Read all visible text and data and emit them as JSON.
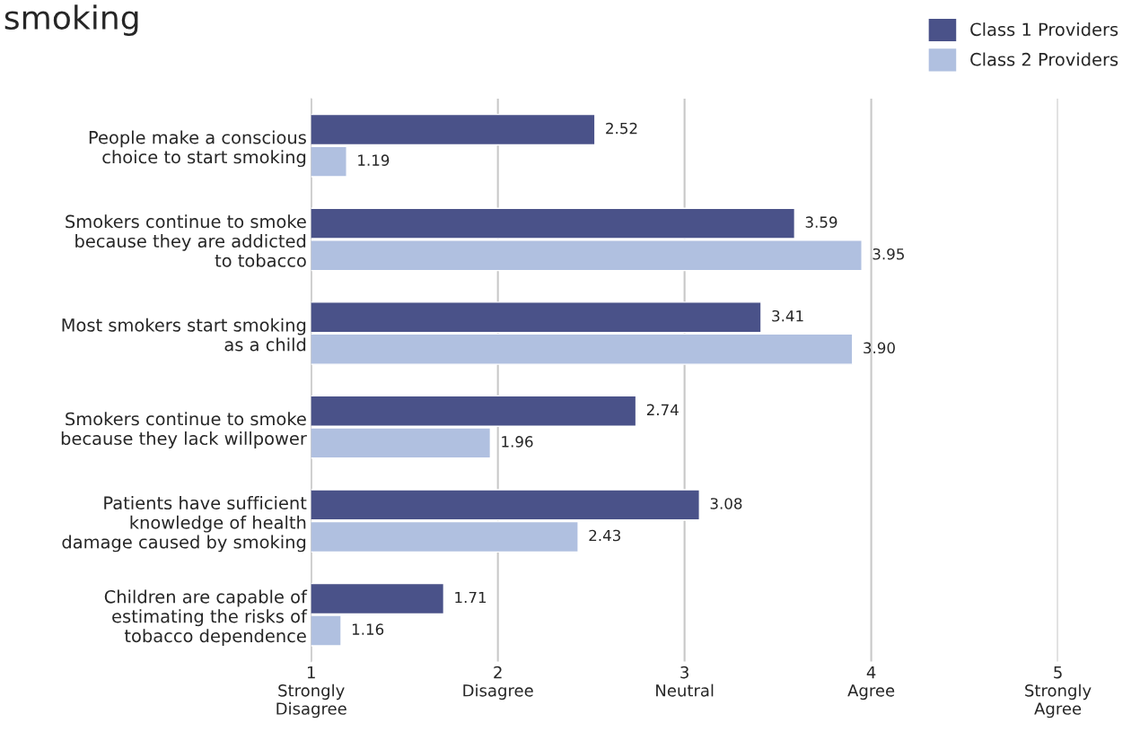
{
  "chart_data": {
    "type": "bar",
    "orientation": "horizontal",
    "title": "smoking",
    "categories": [
      "People make a conscious\nchoice to start smoking",
      "Smokers continue to smoke\nbecause they are addicted\nto tobacco",
      "Most smokers start smoking\nas a child",
      "Smokers continue to smoke\nbecause they lack willpower",
      "Patients have sufficient\nknowledge of health\ndamage caused by smoking",
      "Children are capable of\nestimating the risks of\ntobacco dependence"
    ],
    "series": [
      {
        "name": "Class 1 Providers",
        "color": "#4a5289",
        "values": [
          2.52,
          3.59,
          3.41,
          2.74,
          3.08,
          1.71
        ],
        "value_labels": [
          "2.52",
          "3.59",
          "3.41",
          "2.74",
          "3.08",
          "1.71"
        ]
      },
      {
        "name": "Class 2 Providers",
        "color": "#b0c0e0",
        "values": [
          1.19,
          3.95,
          3.9,
          1.96,
          2.43,
          1.16
        ],
        "value_labels": [
          "1.19",
          "3.95",
          "3.90",
          "1.96",
          "2.43",
          "1.16"
        ]
      }
    ],
    "xlim": [
      1,
      5
    ],
    "xticks": [
      {
        "value": 1,
        "label": "1\nStrongly\nDisagree"
      },
      {
        "value": 2,
        "label": "2\nDisagree"
      },
      {
        "value": 3,
        "label": "3\nNeutral"
      },
      {
        "value": 4,
        "label": "4\nAgree"
      },
      {
        "value": 5,
        "label": "5\nStrongly\nAgree"
      }
    ],
    "grid": "x",
    "legend": "top right"
  }
}
